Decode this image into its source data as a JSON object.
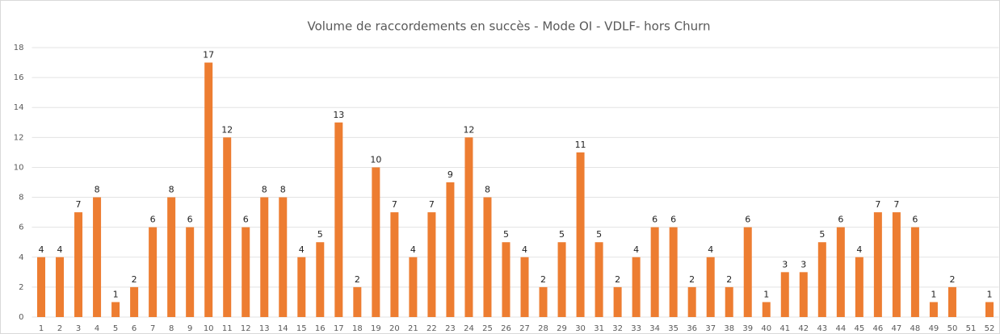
{
  "chart_data": {
    "type": "bar",
    "title": "Volume de raccordements en succès - Mode OI - VDLF- hors Churn",
    "categories": [
      "1",
      "2",
      "3",
      "4",
      "5",
      "6",
      "7",
      "8",
      "9",
      "10",
      "11",
      "12",
      "13",
      "14",
      "15",
      "16",
      "17",
      "18",
      "19",
      "20",
      "21",
      "22",
      "23",
      "24",
      "25",
      "26",
      "27",
      "28",
      "29",
      "30",
      "31",
      "32",
      "33",
      "34",
      "35",
      "36",
      "37",
      "38",
      "39",
      "40",
      "41",
      "42",
      "43",
      "44",
      "45",
      "46",
      "47",
      "48",
      "49",
      "50",
      "51",
      "52"
    ],
    "values": [
      4,
      4,
      7,
      8,
      1,
      2,
      6,
      8,
      6,
      17,
      12,
      6,
      8,
      8,
      4,
      5,
      13,
      2,
      10,
      7,
      4,
      7,
      9,
      12,
      8,
      5,
      4,
      2,
      5,
      11,
      5,
      2,
      4,
      6,
      6,
      2,
      4,
      2,
      6,
      1,
      3,
      3,
      5,
      6,
      4,
      7,
      7,
      6,
      1,
      2,
      null,
      1
    ],
    "color": "#ed7d31",
    "ylim": [
      0,
      18
    ],
    "yticks": [
      0,
      2,
      4,
      6,
      8,
      10,
      12,
      14,
      16,
      18
    ],
    "grid": true
  }
}
